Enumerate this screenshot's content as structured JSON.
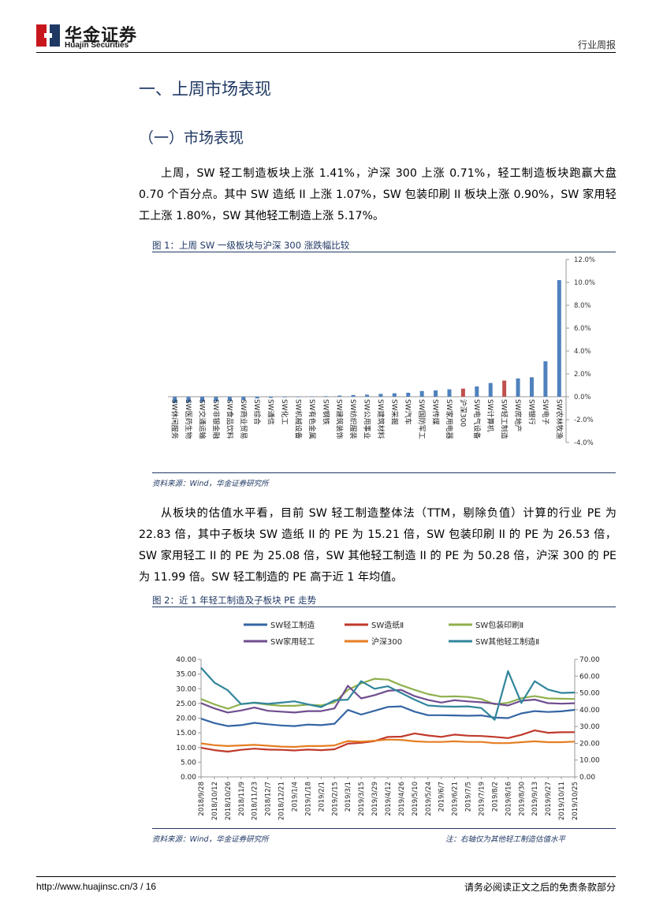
{
  "header": {
    "company_cn": "华金证券",
    "company_en": "Huajin Securities",
    "doc_type": "行业周报",
    "logo_colors": {
      "red": "#c8161d",
      "navy": "#1f3864"
    }
  },
  "section_title": "一、上周市场表现",
  "subsection_title": "（一）市场表现",
  "paragraph1": "上周，SW 轻工制造板块上涨 1.41%，沪深 300 上涨 0.71%，轻工制造板块跑赢大盘 0.70 个百分点。其中 SW 造纸 II 上涨 1.07%，SW 包装印刷 II 板块上涨 0.90%，SW 家用轻工上涨 1.80%，SW 其他轻工制造上涨 5.17%。",
  "figure1": {
    "title": "图 1：上周 SW 一级板块与沪深 300 涨跌幅比较",
    "source": "资料来源：Wind，华金证券研究所"
  },
  "paragraph2": "从板块的估值水平看，目前 SW 轻工制造整体法（TTM，剔除负值）计算的行业 PE 为 22.83 倍，其中子板块 SW 造纸 II 的 PE 为 15.21 倍，SW 包装印刷 II 的 PE 为 26.53 倍，SW 家用轻工 II 的 PE 为 25.08 倍，SW 其他轻工制造 II 的 PE 为 50.28 倍，沪深 300 的 PE 为 11.99 倍。SW 轻工制造的 PE 高于近 1 年均值。",
  "figure2": {
    "title": "图 2：近 1 年轻工制造及子板块 PE 走势",
    "source": "资料来源：Wind，华金证券研究所",
    "note": "注：右轴仅为其他轻工制造估值水平"
  },
  "footer": {
    "url": "http://www.huajinsc.cn/3 / 16",
    "disclaimer": "请务必阅读正文之后的免责条款部分"
  },
  "chart_data": [
    {
      "type": "bar",
      "title": "",
      "categories": [
        "SW休闲服务",
        "SW医药生物",
        "SW交通运输",
        "SW非银金融",
        "SW食品饮料",
        "SW商业贸易",
        "SW综合",
        "SW通信",
        "SW化工",
        "SW机械设备",
        "SW有色金属",
        "SW钢铁",
        "SW建筑装饰",
        "SW纺织服装",
        "SW公用事业",
        "SW建筑材料",
        "SW采掘",
        "SW汽车",
        "SW国防军工",
        "SW传媒",
        "SW家用电器",
        "沪深300",
        "SW电气设备",
        "SW计算机",
        "SW轻工制造",
        "SW房地产",
        "SW银行",
        "SW电子",
        "SW农林牧渔"
      ],
      "values": [
        -0.55,
        -0.5,
        -0.45,
        -0.4,
        -0.38,
        -0.3,
        -0.15,
        -0.1,
        -0.05,
        -0.02,
        0.02,
        0.05,
        0.1,
        0.15,
        0.18,
        0.25,
        0.3,
        0.35,
        0.5,
        0.55,
        0.65,
        0.71,
        0.9,
        1.2,
        1.41,
        1.6,
        1.7,
        3.1,
        10.2
      ],
      "highlight": [
        "沪深300",
        "SW轻工制造"
      ],
      "colors": {
        "default": "#4f81bd",
        "highlight": "#c0504d"
      },
      "yaxis": "right",
      "ylim": [
        -4,
        12
      ],
      "ytick_labels": [
        "12.0%",
        "10.0%",
        "8.0%",
        "6.0%",
        "4.0%",
        "2.0%",
        "0.0%",
        "-2.0%",
        "-4.0%"
      ],
      "ytick_values": [
        12,
        10,
        8,
        6,
        4,
        2,
        0,
        -2,
        -4
      ]
    },
    {
      "type": "line",
      "title": "",
      "x": [
        "2018/9/28",
        "2018/10/12",
        "2018/10/26",
        "2018/11/9",
        "2018/11/23",
        "2018/12/7",
        "2018/12/21",
        "2019/1/4",
        "2019/1/18",
        "2019/2/1",
        "2019/2/15",
        "2019/3/1",
        "2019/3/15",
        "2019/3/29",
        "2019/4/12",
        "2019/4/26",
        "2019/5/10",
        "2019/5/24",
        "2019/6/7",
        "2019/6/21",
        "2019/7/5",
        "2019/7/19",
        "2019/8/2",
        "2019/8/16",
        "2019/8/30",
        "2019/9/13",
        "2019/9/27",
        "2019/10/11",
        "2019/10/25"
      ],
      "ylim_left": [
        0,
        40
      ],
      "ylim_right": [
        0,
        70
      ],
      "ytick_labels_left": [
        "40.00",
        "35.00",
        "30.00",
        "25.00",
        "20.00",
        "15.00",
        "10.00",
        "5.00",
        "0.00"
      ],
      "ytick_labels_right": [
        "70.00",
        "60.00",
        "50.00",
        "40.00",
        "30.00",
        "20.00",
        "10.00",
        "0.00"
      ],
      "legend_position": "top",
      "series": [
        {
          "name": "SW轻工制造",
          "color": "#3465a4",
          "axis": "left",
          "values": [
            19.8,
            18.3,
            17.3,
            17.6,
            18.4,
            17.9,
            17.5,
            17.3,
            17.8,
            17.6,
            18.1,
            22.8,
            21.2,
            22.5,
            23.8,
            24.0,
            22.2,
            21.0,
            21.0,
            20.9,
            20.8,
            20.9,
            20.2,
            20.0,
            21.6,
            22.4,
            22.1,
            22.3,
            22.83
          ]
        },
        {
          "name": "SW造纸Ⅱ",
          "color": "#c0392b",
          "axis": "left",
          "values": [
            9.9,
            9.1,
            8.6,
            9.2,
            9.6,
            9.3,
            9.2,
            9.0,
            9.3,
            9.1,
            9.4,
            11.3,
            11.6,
            12.2,
            13.6,
            13.7,
            14.8,
            14.1,
            13.6,
            14.4,
            14.0,
            13.9,
            13.6,
            13.2,
            14.3,
            15.8,
            15.0,
            15.2,
            15.21
          ]
        },
        {
          "name": "SW包装印刷Ⅱ",
          "color": "#8fb04d",
          "axis": "left",
          "values": [
            26.5,
            24.7,
            23.2,
            24.8,
            25.2,
            24.6,
            24.2,
            24.2,
            24.6,
            24.3,
            25.4,
            29.6,
            31.8,
            33.4,
            33.1,
            31.2,
            29.6,
            28.2,
            27.3,
            27.4,
            27.2,
            26.5,
            24.7,
            25.2,
            26.8,
            27.5,
            26.7,
            26.6,
            26.53
          ]
        },
        {
          "name": "SW家用轻工",
          "color": "#6f4d8f",
          "axis": "left",
          "values": [
            25.1,
            23.3,
            21.9,
            22.6,
            23.6,
            22.5,
            22.2,
            21.9,
            22.4,
            22.4,
            23.3,
            31.0,
            26.7,
            27.8,
            29.3,
            29.6,
            27.5,
            26.2,
            25.3,
            26.1,
            25.7,
            25.4,
            24.9,
            24.3,
            25.9,
            26.3,
            25.1,
            24.9,
            25.08
          ]
        },
        {
          "name": "沪深300",
          "color": "#e67e22",
          "axis": "left",
          "values": [
            11.4,
            10.8,
            10.5,
            10.7,
            10.9,
            10.6,
            10.3,
            10.2,
            10.5,
            10.5,
            10.7,
            12.2,
            12.0,
            12.3,
            12.7,
            12.6,
            12.1,
            11.9,
            11.9,
            12.1,
            11.9,
            11.9,
            11.5,
            11.5,
            11.8,
            12.1,
            11.8,
            11.8,
            11.99
          ]
        },
        {
          "name": "SW其他轻工制造Ⅱ",
          "color": "#31859c",
          "axis": "right",
          "values": [
            65.0,
            56.2,
            51.6,
            43.3,
            44.2,
            43.5,
            44.2,
            45.0,
            43.2,
            41.6,
            45.6,
            46.0,
            57.0,
            52.5,
            54.0,
            50.0,
            46.0,
            42.5,
            42.0,
            41.8,
            42.0,
            41.0,
            34.0,
            63.0,
            44.0,
            57.0,
            52.0,
            50.0,
            50.28
          ]
        }
      ]
    }
  ]
}
